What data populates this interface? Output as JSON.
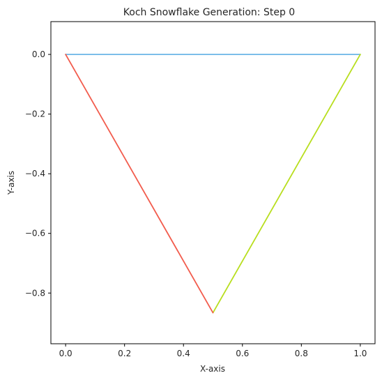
{
  "chart_data": {
    "type": "line",
    "title": "Koch Snowflake Generation: Step 0",
    "xlabel": "X-axis",
    "ylabel": "Y-axis",
    "xlim": [
      -0.05,
      1.05
    ],
    "ylim": [
      -0.97,
      0.11
    ],
    "xticks": [
      0.0,
      0.2,
      0.4,
      0.6,
      0.8,
      1.0
    ],
    "xtick_labels": [
      "0.0",
      "0.2",
      "0.4",
      "0.6",
      "0.8",
      "1.0"
    ],
    "yticks": [
      0.0,
      -0.2,
      -0.4,
      -0.6,
      -0.8
    ],
    "ytick_labels": [
      "0.0",
      "−0.2",
      "−0.4",
      "−0.6",
      "−0.8"
    ],
    "grid": false,
    "series": [
      {
        "color": "#74b9e8",
        "x": [
          0.0,
          1.0
        ],
        "y": [
          0.0,
          0.0
        ]
      },
      {
        "color": "#b8de1e",
        "x": [
          1.0,
          0.5
        ],
        "y": [
          0.0,
          -0.866
        ]
      },
      {
        "color": "#f25c4d",
        "x": [
          0.5,
          0.0
        ],
        "y": [
          -0.866,
          0.0
        ]
      }
    ]
  }
}
